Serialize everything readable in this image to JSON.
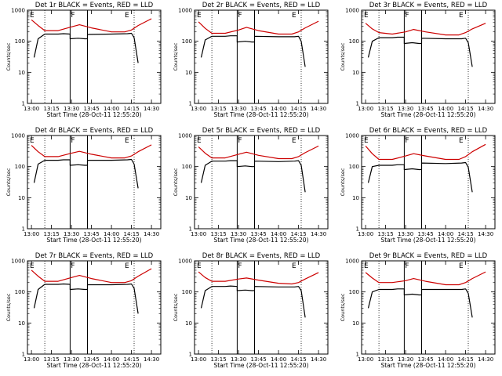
{
  "chart_data": [
    {
      "type": "line",
      "detector": "1r",
      "title": "Det 1r BLACK = Events, RED = LLD",
      "xlabel": "Start Time (28-Oct-11 12:55:20)",
      "ylabel": "Counts/sec",
      "x_ticks": [
        "13:00",
        "13:15",
        "13:30",
        "13:45",
        "14:00",
        "14:15",
        "14:30"
      ],
      "y_ticks": [
        "1",
        "10",
        "100",
        "1000"
      ],
      "y_scale": "log",
      "ylim": [
        1,
        1000
      ],
      "segment_markers": [
        "E",
        "F",
        "E"
      ],
      "series": [
        {
          "color": "#000000",
          "t": [
            "13:02",
            "13:05",
            "13:10",
            "13:20",
            "13:24",
            "13:29",
            "13:29",
            "13:35",
            "13:40",
            "13:42",
            "13:42",
            "14:00",
            "14:12",
            "14:15",
            "14:17",
            "14:20"
          ],
          "values": [
            30,
            120,
            170,
            170,
            175,
            170,
            120,
            125,
            120,
            120,
            165,
            170,
            175,
            180,
            130,
            20
          ]
        },
        {
          "color": "#cc0000",
          "t": [
            "13:00",
            "13:05",
            "13:10",
            "13:20",
            "13:30",
            "13:36",
            "13:45",
            "14:00",
            "14:10",
            "14:15",
            "14:20",
            "14:30"
          ],
          "values": [
            490,
            320,
            220,
            220,
            290,
            340,
            270,
            200,
            200,
            230,
            320,
            530
          ]
        }
      ]
    },
    {
      "type": "line",
      "detector": "2r",
      "title": "Det 2r BLACK = Events, RED = LLD",
      "xlabel": "Start Time (28-Oct-11 12:55:20)",
      "ylabel": "Counts/sec",
      "x_ticks": [
        "13:00",
        "13:15",
        "13:30",
        "13:45",
        "14:00",
        "14:15",
        "14:30"
      ],
      "y_ticks": [
        "1",
        "10",
        "100",
        "1000"
      ],
      "y_scale": "log",
      "ylim": [
        1,
        1000
      ],
      "segment_markers": [
        "E",
        "F",
        "E"
      ],
      "series": [
        {
          "color": "#000000",
          "t": [
            "13:02",
            "13:05",
            "13:10",
            "13:20",
            "13:24",
            "13:29",
            "13:29",
            "13:35",
            "13:40",
            "13:42",
            "13:42",
            "14:00",
            "14:12",
            "14:15",
            "14:17",
            "14:20"
          ],
          "values": [
            30,
            110,
            145,
            145,
            150,
            150,
            95,
            100,
            95,
            95,
            145,
            140,
            140,
            145,
            100,
            15
          ]
        },
        {
          "color": "#cc0000",
          "t": [
            "13:00",
            "13:05",
            "13:10",
            "13:20",
            "13:30",
            "13:36",
            "13:45",
            "14:00",
            "14:10",
            "14:15",
            "14:20",
            "14:30"
          ],
          "values": [
            420,
            260,
            180,
            180,
            230,
            280,
            220,
            170,
            170,
            200,
            270,
            440
          ]
        }
      ]
    },
    {
      "type": "line",
      "detector": "3r",
      "title": "Det 3r BLACK = Events, RED = LLD",
      "xlabel": "Start Time (28-Oct-11 12:55:20)",
      "ylabel": "Counts/sec",
      "x_ticks": [
        "13:00",
        "13:15",
        "13:30",
        "13:45",
        "14:00",
        "14:15",
        "14:30"
      ],
      "y_ticks": [
        "1",
        "10",
        "100",
        "1000"
      ],
      "y_scale": "log",
      "ylim": [
        1,
        1000
      ],
      "segment_markers": [
        "E",
        "F",
        "E"
      ],
      "series": [
        {
          "color": "#000000",
          "t": [
            "13:02",
            "13:05",
            "13:10",
            "13:20",
            "13:24",
            "13:29",
            "13:29",
            "13:35",
            "13:40",
            "13:42",
            "13:42",
            "14:00",
            "14:12",
            "14:15",
            "14:17",
            "14:20"
          ],
          "values": [
            30,
            100,
            130,
            130,
            135,
            135,
            85,
            90,
            85,
            85,
            125,
            120,
            120,
            125,
            90,
            15
          ]
        },
        {
          "color": "#cc0000",
          "t": [
            "13:00",
            "13:05",
            "13:10",
            "13:20",
            "13:30",
            "13:36",
            "13:45",
            "14:00",
            "14:10",
            "14:15",
            "14:20",
            "14:30"
          ],
          "values": [
            380,
            250,
            190,
            170,
            200,
            240,
            200,
            160,
            160,
            190,
            250,
            380
          ]
        }
      ]
    },
    {
      "type": "line",
      "detector": "4r",
      "title": "Det 4r BLACK = Events, RED = LLD",
      "xlabel": "Start Time (28-Oct-11 12:55:20)",
      "ylabel": "Counts/sec",
      "x_ticks": [
        "13:00",
        "13:15",
        "13:30",
        "13:45",
        "14:00",
        "14:15",
        "14:30"
      ],
      "y_ticks": [
        "1",
        "10",
        "100",
        "1000"
      ],
      "y_scale": "log",
      "ylim": [
        1,
        1000
      ],
      "segment_markers": [
        "E",
        "F",
        "E"
      ],
      "series": [
        {
          "color": "#000000",
          "t": [
            "13:02",
            "13:05",
            "13:10",
            "13:20",
            "13:24",
            "13:29",
            "13:29",
            "13:35",
            "13:40",
            "13:42",
            "13:42",
            "14:00",
            "14:12",
            "14:15",
            "14:17",
            "14:20"
          ],
          "values": [
            30,
            120,
            160,
            160,
            165,
            165,
            110,
            115,
            110,
            110,
            160,
            160,
            165,
            170,
            120,
            20
          ]
        },
        {
          "color": "#cc0000",
          "t": [
            "13:00",
            "13:05",
            "13:10",
            "13:20",
            "13:30",
            "13:36",
            "13:45",
            "14:00",
            "14:10",
            "14:15",
            "14:20",
            "14:30"
          ],
          "values": [
            480,
            300,
            210,
            210,
            270,
            310,
            250,
            190,
            190,
            220,
            300,
            500
          ]
        }
      ]
    },
    {
      "type": "line",
      "detector": "5r",
      "title": "Det 5r BLACK = Events, RED = LLD",
      "xlabel": "Start Time (28-Oct-11 12:55:20)",
      "ylabel": "Counts/sec",
      "x_ticks": [
        "13:00",
        "13:15",
        "13:30",
        "13:45",
        "14:00",
        "14:15",
        "14:30"
      ],
      "y_ticks": [
        "1",
        "10",
        "100",
        "1000"
      ],
      "y_scale": "log",
      "ylim": [
        1,
        1000
      ],
      "segment_markers": [
        "E",
        "F",
        "E"
      ],
      "series": [
        {
          "color": "#000000",
          "t": [
            "13:02",
            "13:05",
            "13:10",
            "13:20",
            "13:24",
            "13:29",
            "13:29",
            "13:35",
            "13:40",
            "13:42",
            "13:42",
            "14:00",
            "14:12",
            "14:15",
            "14:17",
            "14:20"
          ],
          "values": [
            30,
            110,
            150,
            150,
            155,
            155,
            100,
            105,
            100,
            100,
            150,
            145,
            150,
            155,
            110,
            15
          ]
        },
        {
          "color": "#cc0000",
          "t": [
            "13:00",
            "13:05",
            "13:10",
            "13:20",
            "13:30",
            "13:36",
            "13:45",
            "14:00",
            "14:10",
            "14:15",
            "14:20",
            "14:30"
          ],
          "values": [
            430,
            270,
            190,
            190,
            250,
            290,
            230,
            180,
            180,
            210,
            280,
            460
          ]
        }
      ]
    },
    {
      "type": "line",
      "detector": "6r",
      "title": "Det 6r BLACK = Events, RED = LLD",
      "xlabel": "Start Time (28-Oct-11 12:55:20)",
      "ylabel": "Counts/sec",
      "x_ticks": [
        "13:00",
        "13:15",
        "13:30",
        "13:45",
        "14:00",
        "14:15",
        "14:30"
      ],
      "y_ticks": [
        "1",
        "10",
        "100",
        "1000"
      ],
      "y_scale": "log",
      "ylim": [
        1,
        1000
      ],
      "segment_markers": [
        "E",
        "F",
        "E"
      ],
      "series": [
        {
          "color": "#000000",
          "t": [
            "13:02",
            "13:05",
            "13:10",
            "13:20",
            "13:24",
            "13:29",
            "13:29",
            "13:35",
            "13:40",
            "13:42",
            "13:42",
            "14:00",
            "14:12",
            "14:15",
            "14:17",
            "14:20"
          ],
          "values": [
            30,
            100,
            110,
            110,
            115,
            115,
            80,
            85,
            80,
            80,
            130,
            125,
            130,
            135,
            95,
            15
          ]
        },
        {
          "color": "#cc0000",
          "t": [
            "13:00",
            "13:05",
            "13:10",
            "13:20",
            "13:30",
            "13:36",
            "13:45",
            "14:00",
            "14:10",
            "14:15",
            "14:20",
            "14:30"
          ],
          "values": [
            460,
            260,
            170,
            170,
            220,
            260,
            220,
            170,
            170,
            210,
            300,
            520
          ]
        }
      ]
    },
    {
      "type": "line",
      "detector": "7r",
      "title": "Det 7r BLACK = Events, RED = LLD",
      "xlabel": "Start Time (28-Oct-11 12:55:20)",
      "ylabel": "Counts/sec",
      "x_ticks": [
        "13:00",
        "13:15",
        "13:30",
        "13:45",
        "14:00",
        "14:15",
        "14:30"
      ],
      "y_ticks": [
        "1",
        "10",
        "100",
        "1000"
      ],
      "y_scale": "log",
      "ylim": [
        1,
        1000
      ],
      "segment_markers": [
        "E",
        "F",
        "E"
      ],
      "series": [
        {
          "color": "#000000",
          "t": [
            "13:02",
            "13:05",
            "13:10",
            "13:20",
            "13:24",
            "13:29",
            "13:29",
            "13:35",
            "13:40",
            "13:42",
            "13:42",
            "14:00",
            "14:12",
            "14:15",
            "14:17",
            "14:20"
          ],
          "values": [
            30,
            120,
            175,
            175,
            180,
            175,
            120,
            125,
            120,
            120,
            170,
            170,
            175,
            180,
            130,
            20
          ]
        },
        {
          "color": "#cc0000",
          "t": [
            "13:00",
            "13:05",
            "13:10",
            "13:20",
            "13:30",
            "13:36",
            "13:45",
            "14:00",
            "14:10",
            "14:15",
            "14:20",
            "14:30"
          ],
          "values": [
            500,
            320,
            220,
            220,
            290,
            340,
            270,
            200,
            200,
            230,
            320,
            560
          ]
        }
      ]
    },
    {
      "type": "line",
      "detector": "8r",
      "title": "Det 8r BLACK = Events, RED = LLD",
      "xlabel": "Start Time (28-Oct-11 12:55:20)",
      "ylabel": "Counts/sec",
      "x_ticks": [
        "13:00",
        "13:15",
        "13:30",
        "13:45",
        "14:00",
        "14:15",
        "14:30"
      ],
      "y_ticks": [
        "1",
        "10",
        "100",
        "1000"
      ],
      "y_scale": "log",
      "ylim": [
        1,
        1000
      ],
      "segment_markers": [
        "E",
        "F",
        "E"
      ],
      "series": [
        {
          "color": "#000000",
          "t": [
            "13:02",
            "13:05",
            "13:10",
            "13:20",
            "13:24",
            "13:29",
            "13:29",
            "13:35",
            "13:40",
            "13:42",
            "13:42",
            "14:00",
            "14:12",
            "14:15",
            "14:17",
            "14:20"
          ],
          "values": [
            30,
            110,
            150,
            150,
            155,
            150,
            110,
            115,
            110,
            110,
            150,
            145,
            145,
            150,
            110,
            15
          ]
        },
        {
          "color": "#cc0000",
          "t": [
            "13:00",
            "13:05",
            "13:10",
            "13:20",
            "13:30",
            "13:36",
            "13:45",
            "14:00",
            "14:10",
            "14:15",
            "14:20",
            "14:30"
          ],
          "values": [
            440,
            290,
            220,
            220,
            260,
            280,
            240,
            190,
            180,
            200,
            260,
            420
          ]
        }
      ]
    },
    {
      "type": "line",
      "detector": "9r",
      "title": "Det 9r BLACK = Events, RED = LLD",
      "xlabel": "Start Time (28-Oct-11 12:55:20)",
      "ylabel": "Counts/sec",
      "x_ticks": [
        "13:00",
        "13:15",
        "13:30",
        "13:45",
        "14:00",
        "14:15",
        "14:30"
      ],
      "y_ticks": [
        "1",
        "10",
        "100",
        "1000"
      ],
      "y_scale": "log",
      "ylim": [
        1,
        1000
      ],
      "segment_markers": [
        "E",
        "F",
        "E"
      ],
      "series": [
        {
          "color": "#000000",
          "t": [
            "13:02",
            "13:05",
            "13:10",
            "13:20",
            "13:24",
            "13:29",
            "13:29",
            "13:35",
            "13:40",
            "13:42",
            "13:42",
            "14:00",
            "14:12",
            "14:15",
            "14:17",
            "14:20"
          ],
          "values": [
            30,
            100,
            120,
            120,
            125,
            125,
            80,
            85,
            80,
            80,
            120,
            120,
            120,
            125,
            90,
            15
          ]
        },
        {
          "color": "#cc0000",
          "t": [
            "13:00",
            "13:05",
            "13:10",
            "13:20",
            "13:30",
            "13:36",
            "13:45",
            "14:00",
            "14:10",
            "14:15",
            "14:20",
            "14:30"
          ],
          "values": [
            420,
            280,
            200,
            200,
            230,
            270,
            220,
            170,
            170,
            200,
            270,
            440
          ]
        }
      ]
    }
  ]
}
